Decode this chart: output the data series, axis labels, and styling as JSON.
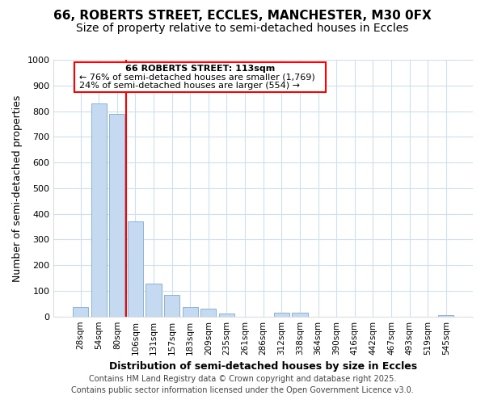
{
  "title_line1": "66, ROBERTS STREET, ECCLES, MANCHESTER, M30 0FX",
  "title_line2": "Size of property relative to semi-detached houses in Eccles",
  "xlabel": "Distribution of semi-detached houses by size in Eccles",
  "ylabel": "Number of semi-detached properties",
  "categories": [
    "28sqm",
    "54sqm",
    "80sqm",
    "106sqm",
    "131sqm",
    "157sqm",
    "183sqm",
    "209sqm",
    "235sqm",
    "261sqm",
    "286sqm",
    "312sqm",
    "338sqm",
    "364sqm",
    "390sqm",
    "416sqm",
    "442sqm",
    "467sqm",
    "493sqm",
    "519sqm",
    "545sqm"
  ],
  "values": [
    37,
    830,
    790,
    370,
    128,
    83,
    37,
    30,
    13,
    0,
    0,
    15,
    15,
    0,
    0,
    0,
    0,
    0,
    0,
    0,
    5
  ],
  "bar_color": "#c5d9f1",
  "bar_edge_color": "#8ab4d9",
  "vline_x_index": 3,
  "vline_color": "red",
  "annotation_title": "66 ROBERTS STREET: 113sqm",
  "annotation_line1": "← 76% of semi-detached houses are smaller (1,769)",
  "annotation_line2": "24% of semi-detached houses are larger (554) →",
  "annotation_box_color": "red",
  "ylim": [
    0,
    1000
  ],
  "yticks": [
    0,
    100,
    200,
    300,
    400,
    500,
    600,
    700,
    800,
    900,
    1000
  ],
  "footer_line1": "Contains HM Land Registry data © Crown copyright and database right 2025.",
  "footer_line2": "Contains public sector information licensed under the Open Government Licence v3.0.",
  "bg_color": "#ffffff",
  "plot_bg_color": "#ffffff",
  "grid_color": "#d0dff0",
  "title_fontsize": 11,
  "subtitle_fontsize": 10,
  "footer_fontsize": 7
}
